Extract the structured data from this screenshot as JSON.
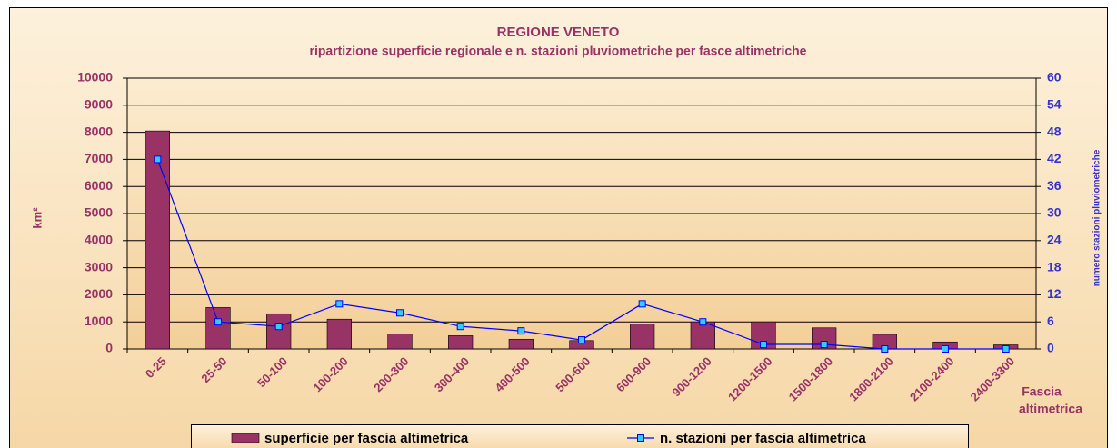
{
  "chart_data": {
    "type": "bar_line",
    "title": "REGIONE VENETO",
    "subtitle": "ripartizione superficie regionale  e n. stazioni pluviometriche per fasce altimetriche",
    "y_label": "km²",
    "y2_label": "numero stazioni pluviometriche",
    "x_label": [
      "Fascia",
      "altimetrica"
    ],
    "categories": [
      "0-25",
      "25-50",
      "50-100",
      "100-200",
      "200-300",
      "300-400",
      "400-500",
      "500-600",
      "600-900",
      "900-1200",
      "1200-1500",
      "1500-1800",
      "1800-2100",
      "2100-2400",
      "2400-3300"
    ],
    "series": [
      {
        "name": "superficie per fascia altimetrica",
        "type": "bar",
        "color": "#993366",
        "values": [
          8050,
          1530,
          1300,
          1100,
          560,
          490,
          360,
          310,
          920,
          1000,
          1000,
          780,
          540,
          260,
          150
        ]
      },
      {
        "name": "n. stazioni per fascia altimetrica",
        "type": "line",
        "axis": "y2",
        "color": "#0000ff",
        "marker_color": "#33ccff",
        "values": [
          42,
          6,
          5,
          10,
          8,
          5,
          4,
          2,
          10,
          6,
          1,
          1,
          0,
          0,
          0
        ]
      }
    ],
    "ylim": [
      0,
      10000
    ],
    "yticks": [
      0,
      1000,
      2000,
      3000,
      4000,
      5000,
      6000,
      7000,
      8000,
      9000,
      10000
    ],
    "y2lim": [
      0,
      60
    ],
    "y2ticks": [
      0,
      6,
      12,
      18,
      24,
      30,
      36,
      42,
      48,
      54,
      60
    ],
    "grid": true,
    "legend": "bottom"
  }
}
